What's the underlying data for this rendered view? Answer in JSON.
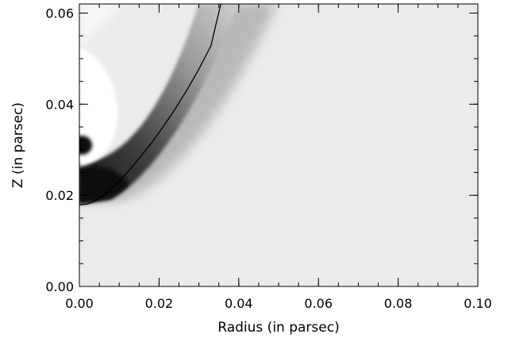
{
  "chart_data": {
    "type": "heatmap",
    "title": "",
    "xlabel": "Radius (in parsec)",
    "ylabel": "Z (in parsec)",
    "xlim": [
      0.0,
      0.1
    ],
    "ylim": [
      0.0,
      0.062
    ],
    "x_major_ticks": [
      {
        "value": 0.0,
        "label": "0.00"
      },
      {
        "value": 0.02,
        "label": "0.02"
      },
      {
        "value": 0.04,
        "label": "0.04"
      },
      {
        "value": 0.06,
        "label": "0.06"
      },
      {
        "value": 0.08,
        "label": "0.08"
      },
      {
        "value": 0.1,
        "label": "0.10"
      }
    ],
    "y_major_ticks": [
      {
        "value": 0.0,
        "label": "0.00"
      },
      {
        "value": 0.02,
        "label": "0.02"
      },
      {
        "value": 0.04,
        "label": "0.04"
      },
      {
        "value": 0.06,
        "label": "0.06"
      }
    ],
    "x_minor_step": 0.005,
    "y_minor_step": 0.005,
    "colormap": "grayscale",
    "colors": {
      "background": "#ebebeb",
      "shell_dark": "#0d0d0d",
      "cavity_light": "#ffffff",
      "line": "#000000"
    },
    "series": [
      {
        "type": "line",
        "x": [
          0.0,
          0.002,
          0.004,
          0.006,
          0.008,
          0.01,
          0.012,
          0.015,
          0.018,
          0.021,
          0.024,
          0.027,
          0.03,
          0.033,
          0.0355
        ],
        "y": [
          0.0179,
          0.0181,
          0.0188,
          0.0199,
          0.0214,
          0.0231,
          0.025,
          0.0281,
          0.0314,
          0.035,
          0.0389,
          0.0431,
          0.0477,
          0.0528,
          0.062
        ]
      }
    ]
  }
}
